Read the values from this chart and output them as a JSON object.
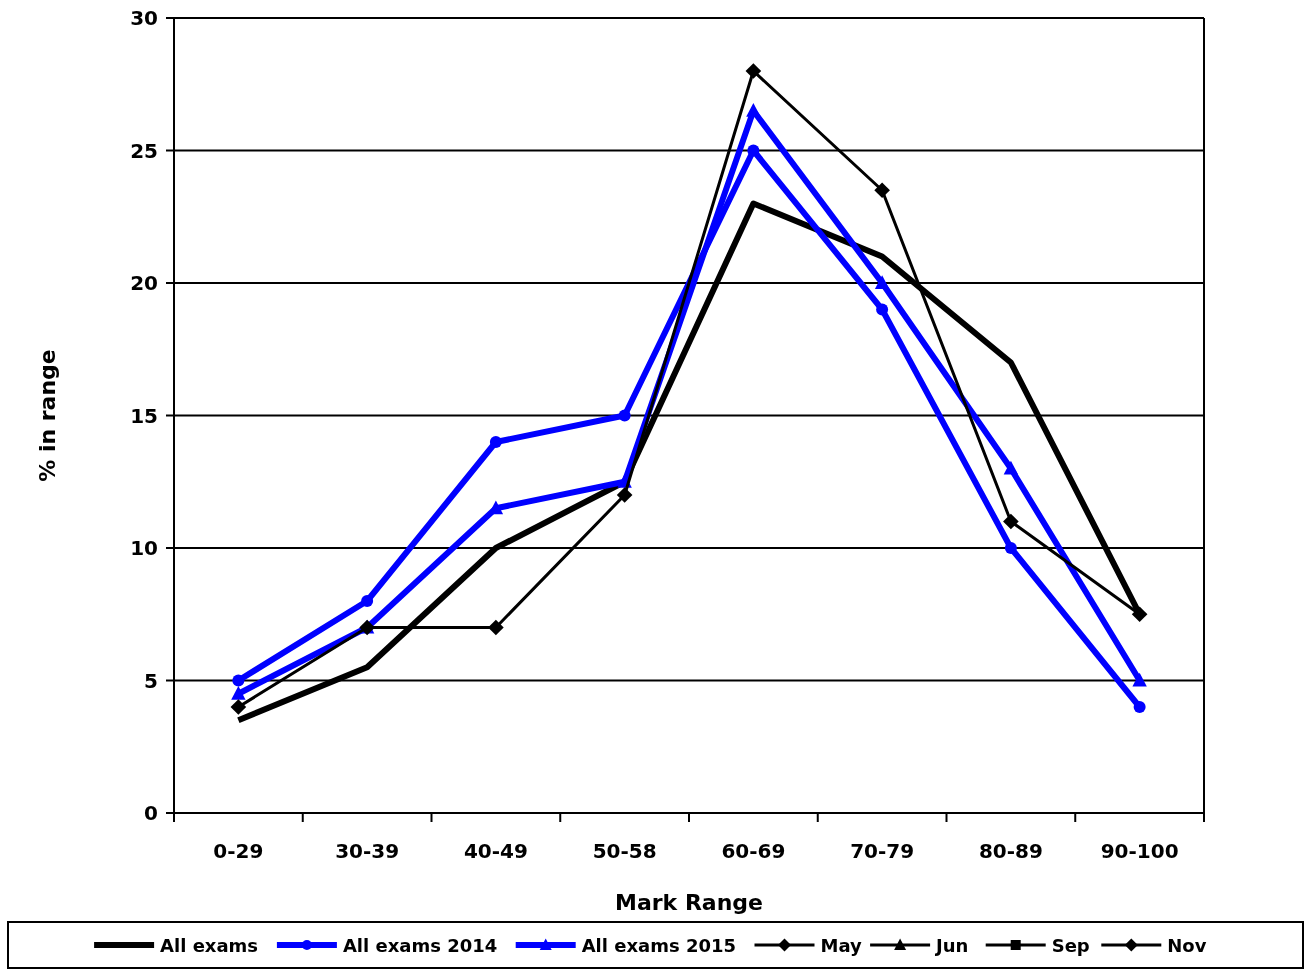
{
  "chart_data": {
    "type": "line",
    "xlabel": "Mark Range",
    "ylabel": "% in range",
    "categories": [
      "0-29",
      "30-39",
      "40-49",
      "50-58",
      "60-69",
      "70-79",
      "80-89",
      "90-100"
    ],
    "ylim": [
      0,
      30
    ],
    "yticks": [
      0,
      5,
      10,
      15,
      20,
      25,
      30
    ],
    "grid": "y",
    "legend": "bottom",
    "series": [
      {
        "name": "All exams",
        "color": "#000000",
        "marker": "none",
        "values": [
          3.5,
          5.5,
          10,
          12.5,
          23,
          21,
          17,
          7.5
        ]
      },
      {
        "name": "All exams 2014",
        "color": "#0000ff",
        "marker": "circle",
        "values": [
          5,
          8,
          14,
          15,
          25,
          19,
          10,
          4
        ]
      },
      {
        "name": "All exams 2015",
        "color": "#0000ff",
        "marker": "triangle",
        "values": [
          4.5,
          7,
          11.5,
          12.5,
          26.5,
          20,
          13,
          5
        ]
      },
      {
        "name": "May",
        "color": "#000000",
        "marker": "diamond",
        "values": [
          null,
          null,
          null,
          null,
          null,
          null,
          null,
          null
        ]
      },
      {
        "name": "Jun",
        "color": "#000000",
        "marker": "triangle",
        "values": [
          null,
          null,
          null,
          null,
          null,
          null,
          null,
          null
        ]
      },
      {
        "name": "Sep",
        "color": "#000000",
        "marker": "square",
        "values": [
          null,
          null,
          null,
          null,
          null,
          null,
          null,
          null
        ]
      },
      {
        "name": "Nov",
        "color": "#000000",
        "marker": "diamond",
        "values": [
          4,
          7,
          7,
          12,
          28,
          23.5,
          11,
          7.5
        ]
      }
    ]
  }
}
